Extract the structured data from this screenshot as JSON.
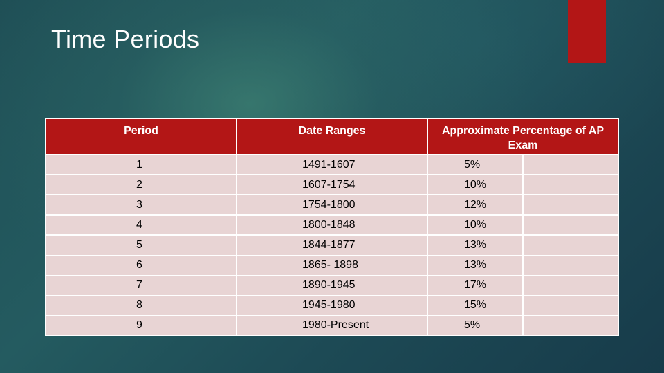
{
  "slide": {
    "title": "Time Periods"
  },
  "colors": {
    "accent": "#b31616",
    "row_bg": "#e8d4d4",
    "background": "#1f4f56"
  },
  "table": {
    "headers": {
      "period": "Period",
      "date_ranges": "Date Ranges",
      "percentage": "Approximate Percentage of AP Exam"
    },
    "rows": [
      {
        "period": "1",
        "dates": "1491-1607",
        "pct": "5%"
      },
      {
        "period": "2",
        "dates": "1607-1754",
        "pct": "10%"
      },
      {
        "period": "3",
        "dates": "1754-1800",
        "pct": "12%"
      },
      {
        "period": "4",
        "dates": "1800-1848",
        "pct": "10%"
      },
      {
        "period": "5",
        "dates": "1844-1877",
        "pct": "13%"
      },
      {
        "period": "6",
        "dates": "1865- 1898",
        "pct": "13%"
      },
      {
        "period": "7",
        "dates": "1890-1945",
        "pct": "17%"
      },
      {
        "period": "8",
        "dates": "1945-1980",
        "pct": "15%"
      },
      {
        "period": "9",
        "dates": "1980-Present",
        "pct": "5%"
      }
    ]
  }
}
